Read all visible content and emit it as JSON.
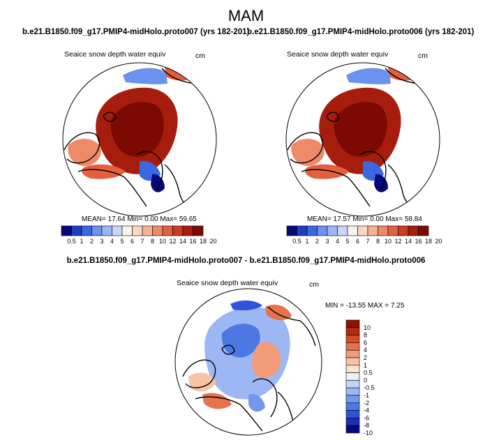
{
  "season": "MAM",
  "colors": {
    "abs_palette": [
      "#08087a",
      "#1a3fc4",
      "#3a68e0",
      "#6a92ee",
      "#9bb7f4",
      "#c7d6f8",
      "#f7f2ee",
      "#fbd6c2",
      "#f6b196",
      "#ef8a68",
      "#e45f3d",
      "#cd3b20",
      "#a61d0d",
      "#7c0a02"
    ],
    "diff_palette": [
      "#0a0a80",
      "#1c2fb8",
      "#2f55d6",
      "#4d78e4",
      "#7597ee",
      "#9db6f4",
      "#c5d3f8",
      "#eef0f8",
      "#fbe2d2",
      "#f7c2a6",
      "#f19c78",
      "#e7734c",
      "#d64a28",
      "#b72a12",
      "#8e1205"
    ]
  },
  "chart_data": [
    {
      "type": "heatmap",
      "title": "b.e21.B1850.f09_g17.PMIP4-midHolo.proto007 (yrs 182-201)",
      "variable": "Seaice snow depth water equiv",
      "units": "cm",
      "stats": {
        "mean_label": "MEAN=",
        "mean": "17.64",
        "min_label": "Min=",
        "min": "0.00",
        "max_label": "Max=",
        "max": "59.65"
      },
      "colorbar_levels": [
        "0.5",
        "1",
        "2",
        "3",
        "4",
        "5",
        "6",
        "7",
        "8",
        "10",
        "12",
        "14",
        "16",
        "18",
        "20"
      ]
    },
    {
      "type": "heatmap",
      "title": "b.e21.B1850.f09_g17.PMIP4-midHolo.proto006 (yrs 182-201)",
      "variable": "Seaice snow depth water equiv",
      "units": "cm",
      "stats": {
        "mean_label": "MEAN=",
        "mean": "17.57",
        "min_label": "Min=",
        "min": "0.00",
        "max_label": "Max=",
        "max": "58.84"
      },
      "colorbar_levels": [
        "0.5",
        "1",
        "2",
        "3",
        "4",
        "5",
        "6",
        "7",
        "8",
        "10",
        "12",
        "14",
        "16",
        "18",
        "20"
      ]
    },
    {
      "type": "heatmap",
      "title": "b.e21.B1850.f09_g17.PMIP4-midHolo.proto007 - b.e21.B1850.f09_g17.PMIP4-midHolo.proto006",
      "variable": "Seaice snow depth water equiv",
      "units": "cm",
      "stats_text": "MIN = -13.55 MAX =  7.25",
      "colorbar_levels": [
        "10",
        "8",
        "6",
        "4",
        "2",
        "1",
        "0.5",
        "0",
        "-0.5",
        "-1",
        "-2",
        "-4",
        "-6",
        "-8",
        "-10"
      ]
    }
  ]
}
